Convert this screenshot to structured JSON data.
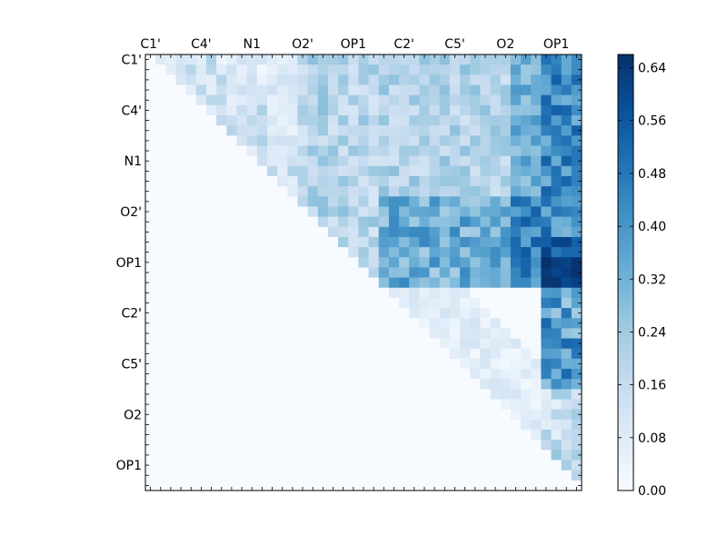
{
  "chart_data": {
    "type": "heatmap",
    "title": "",
    "xlabel": "",
    "ylabel": "",
    "n": 43,
    "tick_labels": [
      "C1'",
      "C4'",
      "N1",
      "O2'",
      "OP1",
      "C2'",
      "C5'",
      "O2",
      "OP1"
    ],
    "y_tick_labels": [
      "C1'",
      "C4'",
      "N1",
      "O2'",
      "OP1",
      "C2'",
      "C5'",
      "O2",
      "OP1"
    ],
    "tick_step": 5,
    "colormap": "Blues",
    "colorbar": {
      "min": 0.0,
      "max": 0.66,
      "ticks": [
        0.0,
        0.08,
        0.16,
        0.24,
        0.32,
        0.4,
        0.48,
        0.56,
        0.64
      ],
      "tick_labels": [
        "0.00",
        "0.08",
        "0.16",
        "0.24",
        "0.32",
        "0.40",
        "0.48",
        "0.56",
        "0.64"
      ]
    },
    "structure": "upper-triangular",
    "region_levels": {
      "blockA_AB": 0.16,
      "blockA_AC": 0.4,
      "blockB_BB": 0.24,
      "blockB_BC": 0.46,
      "blockC_CC": 0.14,
      "blockC_last": 0.5,
      "peak": 0.66
    }
  },
  "colors": {
    "cmap": [
      "#f7fbff",
      "#deebf7",
      "#c6dbef",
      "#9ecae1",
      "#6baed6",
      "#4292c6",
      "#2171b5",
      "#08519c",
      "#08306b"
    ]
  }
}
